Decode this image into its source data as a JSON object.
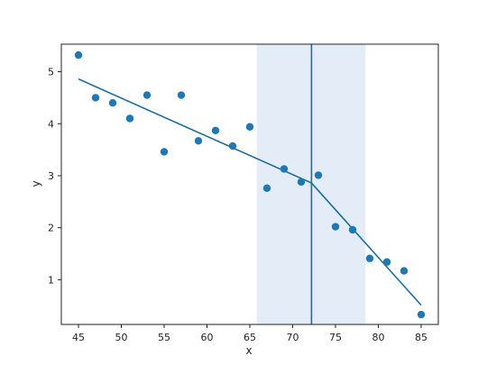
{
  "chart_data": {
    "type": "scatter",
    "title": "",
    "xlabel": "x",
    "ylabel": "y",
    "xlim": [
      43.0,
      87.0
    ],
    "ylim": [
      0.14,
      5.53
    ],
    "xticks": [
      45,
      50,
      55,
      60,
      65,
      70,
      75,
      80,
      85
    ],
    "yticks": [
      1,
      2,
      3,
      4,
      5
    ],
    "grid": false,
    "legend": "none",
    "colors": {
      "points": "#1f77b4",
      "fit_line": "#1a6f9c",
      "breakpoint_line": "#1a6f9c",
      "confidence_band": "#d8e6f3",
      "axes": "#222222"
    },
    "points": {
      "x": [
        45,
        47,
        49,
        51,
        53,
        55,
        57,
        59,
        61,
        63,
        65,
        67,
        69,
        71,
        73,
        75,
        77,
        79,
        81,
        83,
        85
      ],
      "y": [
        5.32,
        4.5,
        4.4,
        4.1,
        4.55,
        3.46,
        4.55,
        3.67,
        3.87,
        3.57,
        3.94,
        2.76,
        3.13,
        2.88,
        3.01,
        2.02,
        1.96,
        1.41,
        1.34,
        1.17,
        0.33
      ]
    },
    "fit_line": {
      "x": [
        45,
        72.2,
        85
      ],
      "y": [
        4.86,
        2.86,
        0.51
      ]
    },
    "breakpoint": {
      "x": 72.2,
      "interval": [
        65.8,
        78.5
      ]
    }
  }
}
